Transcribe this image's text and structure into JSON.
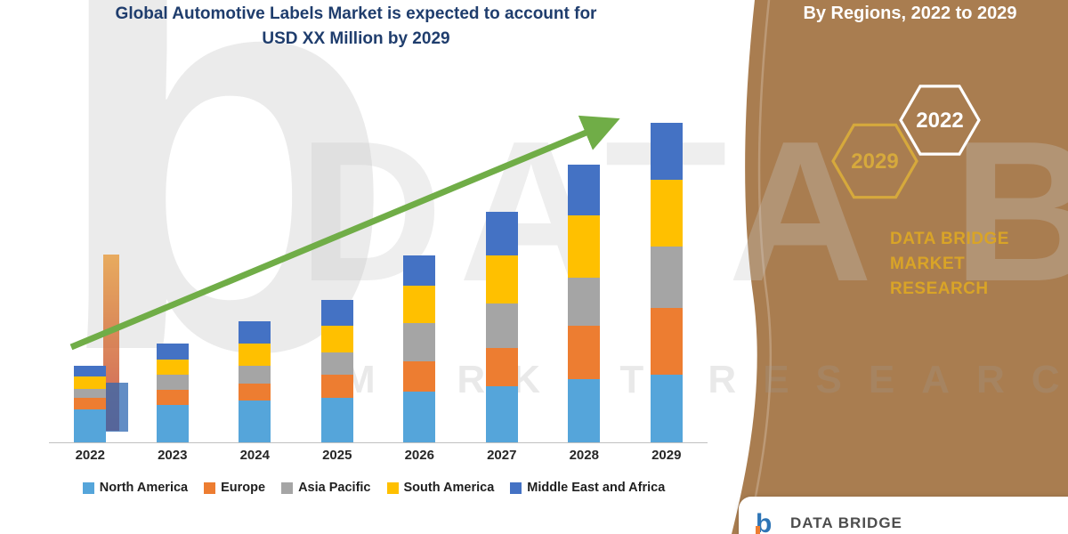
{
  "title": {
    "line1": "Global Automotive Labels Market is expected to account for",
    "line2": "USD XX Million by 2029",
    "color": "#1F3D6D"
  },
  "side_panel": {
    "heading": "By Regions, 2022 to 2029",
    "panel_color": "#A97D50",
    "hexagons": [
      {
        "label": "2029",
        "color": "#D6A93C"
      },
      {
        "label": "2022",
        "color": "#FFFFFF"
      }
    ],
    "brand": {
      "line1": "DATA BRIDGE MARKET",
      "line2": "RESEARCH",
      "color": "#D9A427"
    }
  },
  "watermark": {
    "letter": "b",
    "line1": "DATA BRIDGE",
    "line2": "MARKET RESEARCH"
  },
  "footer": {
    "brand": "DATA BRIDGE"
  },
  "chart_data": {
    "type": "bar",
    "stacked": true,
    "title": "Global Automotive Labels Market is expected to account for USD XX Million by 2029",
    "xlabel": "",
    "ylabel": "",
    "categories": [
      "2022",
      "2023",
      "2024",
      "2025",
      "2026",
      "2027",
      "2028",
      "2029"
    ],
    "series": [
      {
        "name": "North America",
        "color": "#55A5DA",
        "values": [
          37,
          42,
          47,
          50,
          57,
          64,
          72,
          77
        ]
      },
      {
        "name": "Europe",
        "color": "#ED7D31",
        "values": [
          13,
          18,
          20,
          27,
          35,
          43,
          60,
          75
        ]
      },
      {
        "name": "Asia Pacific",
        "color": "#A5A5A5",
        "values": [
          11,
          17,
          20,
          25,
          43,
          50,
          55,
          70
        ]
      },
      {
        "name": "South America",
        "color": "#FFC000",
        "values": [
          14,
          17,
          25,
          30,
          42,
          55,
          70,
          75
        ]
      },
      {
        "name": "Middle East and Africa",
        "color": "#4472C4",
        "values": [
          12,
          18,
          25,
          29,
          35,
          49,
          58,
          65
        ]
      }
    ],
    "ylim": [
      0,
      380
    ],
    "y_axis_labels_visible": false,
    "grid": false,
    "legend_position": "bottom",
    "trend_arrow": true,
    "trend_arrow_color": "#70AD47"
  }
}
